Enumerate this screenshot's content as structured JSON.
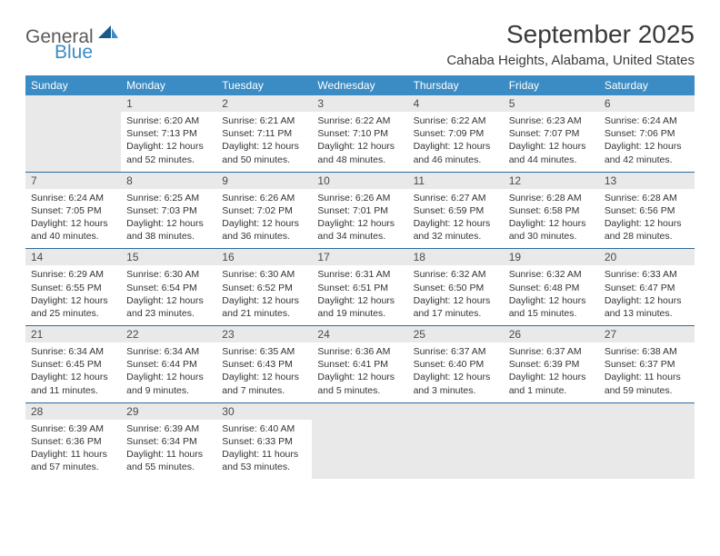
{
  "brand": {
    "part1": "General",
    "part2": "Blue"
  },
  "title": "September 2025",
  "location": "Cahaba Heights, Alabama, United States",
  "colors": {
    "header_bg": "#3b8cc4",
    "header_text": "#ffffff",
    "daynum_bg": "#e9e9e9",
    "border": "#2e6a9e",
    "text": "#333333",
    "title_text": "#3a3a3a",
    "logo_gray": "#5a5a5a",
    "logo_blue": "#3b8cc4"
  },
  "weekdays": [
    "Sunday",
    "Monday",
    "Tuesday",
    "Wednesday",
    "Thursday",
    "Friday",
    "Saturday"
  ],
  "weeks": [
    [
      null,
      {
        "n": "1",
        "sr": "Sunrise: 6:20 AM",
        "ss": "Sunset: 7:13 PM",
        "d1": "Daylight: 12 hours",
        "d2": "and 52 minutes."
      },
      {
        "n": "2",
        "sr": "Sunrise: 6:21 AM",
        "ss": "Sunset: 7:11 PM",
        "d1": "Daylight: 12 hours",
        "d2": "and 50 minutes."
      },
      {
        "n": "3",
        "sr": "Sunrise: 6:22 AM",
        "ss": "Sunset: 7:10 PM",
        "d1": "Daylight: 12 hours",
        "d2": "and 48 minutes."
      },
      {
        "n": "4",
        "sr": "Sunrise: 6:22 AM",
        "ss": "Sunset: 7:09 PM",
        "d1": "Daylight: 12 hours",
        "d2": "and 46 minutes."
      },
      {
        "n": "5",
        "sr": "Sunrise: 6:23 AM",
        "ss": "Sunset: 7:07 PM",
        "d1": "Daylight: 12 hours",
        "d2": "and 44 minutes."
      },
      {
        "n": "6",
        "sr": "Sunrise: 6:24 AM",
        "ss": "Sunset: 7:06 PM",
        "d1": "Daylight: 12 hours",
        "d2": "and 42 minutes."
      }
    ],
    [
      {
        "n": "7",
        "sr": "Sunrise: 6:24 AM",
        "ss": "Sunset: 7:05 PM",
        "d1": "Daylight: 12 hours",
        "d2": "and 40 minutes."
      },
      {
        "n": "8",
        "sr": "Sunrise: 6:25 AM",
        "ss": "Sunset: 7:03 PM",
        "d1": "Daylight: 12 hours",
        "d2": "and 38 minutes."
      },
      {
        "n": "9",
        "sr": "Sunrise: 6:26 AM",
        "ss": "Sunset: 7:02 PM",
        "d1": "Daylight: 12 hours",
        "d2": "and 36 minutes."
      },
      {
        "n": "10",
        "sr": "Sunrise: 6:26 AM",
        "ss": "Sunset: 7:01 PM",
        "d1": "Daylight: 12 hours",
        "d2": "and 34 minutes."
      },
      {
        "n": "11",
        "sr": "Sunrise: 6:27 AM",
        "ss": "Sunset: 6:59 PM",
        "d1": "Daylight: 12 hours",
        "d2": "and 32 minutes."
      },
      {
        "n": "12",
        "sr": "Sunrise: 6:28 AM",
        "ss": "Sunset: 6:58 PM",
        "d1": "Daylight: 12 hours",
        "d2": "and 30 minutes."
      },
      {
        "n": "13",
        "sr": "Sunrise: 6:28 AM",
        "ss": "Sunset: 6:56 PM",
        "d1": "Daylight: 12 hours",
        "d2": "and 28 minutes."
      }
    ],
    [
      {
        "n": "14",
        "sr": "Sunrise: 6:29 AM",
        "ss": "Sunset: 6:55 PM",
        "d1": "Daylight: 12 hours",
        "d2": "and 25 minutes."
      },
      {
        "n": "15",
        "sr": "Sunrise: 6:30 AM",
        "ss": "Sunset: 6:54 PM",
        "d1": "Daylight: 12 hours",
        "d2": "and 23 minutes."
      },
      {
        "n": "16",
        "sr": "Sunrise: 6:30 AM",
        "ss": "Sunset: 6:52 PM",
        "d1": "Daylight: 12 hours",
        "d2": "and 21 minutes."
      },
      {
        "n": "17",
        "sr": "Sunrise: 6:31 AM",
        "ss": "Sunset: 6:51 PM",
        "d1": "Daylight: 12 hours",
        "d2": "and 19 minutes."
      },
      {
        "n": "18",
        "sr": "Sunrise: 6:32 AM",
        "ss": "Sunset: 6:50 PM",
        "d1": "Daylight: 12 hours",
        "d2": "and 17 minutes."
      },
      {
        "n": "19",
        "sr": "Sunrise: 6:32 AM",
        "ss": "Sunset: 6:48 PM",
        "d1": "Daylight: 12 hours",
        "d2": "and 15 minutes."
      },
      {
        "n": "20",
        "sr": "Sunrise: 6:33 AM",
        "ss": "Sunset: 6:47 PM",
        "d1": "Daylight: 12 hours",
        "d2": "and 13 minutes."
      }
    ],
    [
      {
        "n": "21",
        "sr": "Sunrise: 6:34 AM",
        "ss": "Sunset: 6:45 PM",
        "d1": "Daylight: 12 hours",
        "d2": "and 11 minutes."
      },
      {
        "n": "22",
        "sr": "Sunrise: 6:34 AM",
        "ss": "Sunset: 6:44 PM",
        "d1": "Daylight: 12 hours",
        "d2": "and 9 minutes."
      },
      {
        "n": "23",
        "sr": "Sunrise: 6:35 AM",
        "ss": "Sunset: 6:43 PM",
        "d1": "Daylight: 12 hours",
        "d2": "and 7 minutes."
      },
      {
        "n": "24",
        "sr": "Sunrise: 6:36 AM",
        "ss": "Sunset: 6:41 PM",
        "d1": "Daylight: 12 hours",
        "d2": "and 5 minutes."
      },
      {
        "n": "25",
        "sr": "Sunrise: 6:37 AM",
        "ss": "Sunset: 6:40 PM",
        "d1": "Daylight: 12 hours",
        "d2": "and 3 minutes."
      },
      {
        "n": "26",
        "sr": "Sunrise: 6:37 AM",
        "ss": "Sunset: 6:39 PM",
        "d1": "Daylight: 12 hours",
        "d2": "and 1 minute."
      },
      {
        "n": "27",
        "sr": "Sunrise: 6:38 AM",
        "ss": "Sunset: 6:37 PM",
        "d1": "Daylight: 11 hours",
        "d2": "and 59 minutes."
      }
    ],
    [
      {
        "n": "28",
        "sr": "Sunrise: 6:39 AM",
        "ss": "Sunset: 6:36 PM",
        "d1": "Daylight: 11 hours",
        "d2": "and 57 minutes."
      },
      {
        "n": "29",
        "sr": "Sunrise: 6:39 AM",
        "ss": "Sunset: 6:34 PM",
        "d1": "Daylight: 11 hours",
        "d2": "and 55 minutes."
      },
      {
        "n": "30",
        "sr": "Sunrise: 6:40 AM",
        "ss": "Sunset: 6:33 PM",
        "d1": "Daylight: 11 hours",
        "d2": "and 53 minutes."
      },
      null,
      null,
      null,
      null
    ]
  ]
}
